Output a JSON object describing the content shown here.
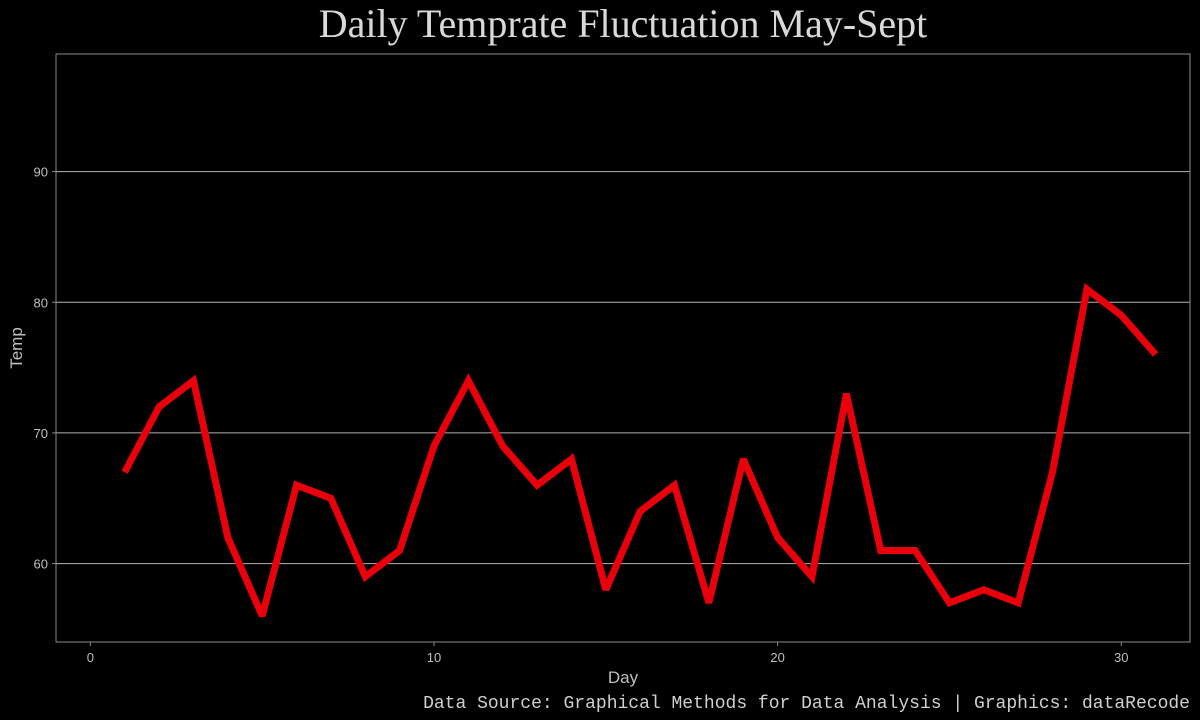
{
  "chart_data": {
    "type": "line",
    "title": "Daily Temprate Fluctuation May-Sept",
    "xlabel": "Day",
    "ylabel": "Temp",
    "caption": "Data Source: Graphical Methods for Data Analysis | Graphics: dataRecode",
    "xlim": [
      -1,
      32
    ],
    "ylim": [
      54,
      99
    ],
    "x_ticks": [
      0,
      10,
      20,
      30
    ],
    "y_ticks": [
      60,
      70,
      80,
      90
    ],
    "grid": "horizontal",
    "series": [
      {
        "color": "#e8000b",
        "x": [
          1,
          2,
          3,
          4,
          5,
          6,
          7,
          8,
          9,
          10,
          11,
          12,
          13,
          14,
          15,
          16,
          17,
          18,
          19,
          20,
          21,
          22,
          23,
          24,
          25,
          26,
          27,
          28,
          29,
          30,
          31
        ],
        "values": [
          67,
          72,
          74,
          62,
          56,
          66,
          65,
          59,
          61,
          69,
          74,
          69,
          66,
          68,
          58,
          64,
          66,
          57,
          68,
          62,
          59,
          73,
          61,
          61,
          57,
          58,
          57,
          67,
          81,
          79,
          76
        ]
      }
    ]
  },
  "colors": {
    "background": "#000000",
    "panel_border": "#8c8c8c",
    "grid": "#b3b3b3",
    "line": "#e8000b",
    "text": "#bfbfbf"
  }
}
